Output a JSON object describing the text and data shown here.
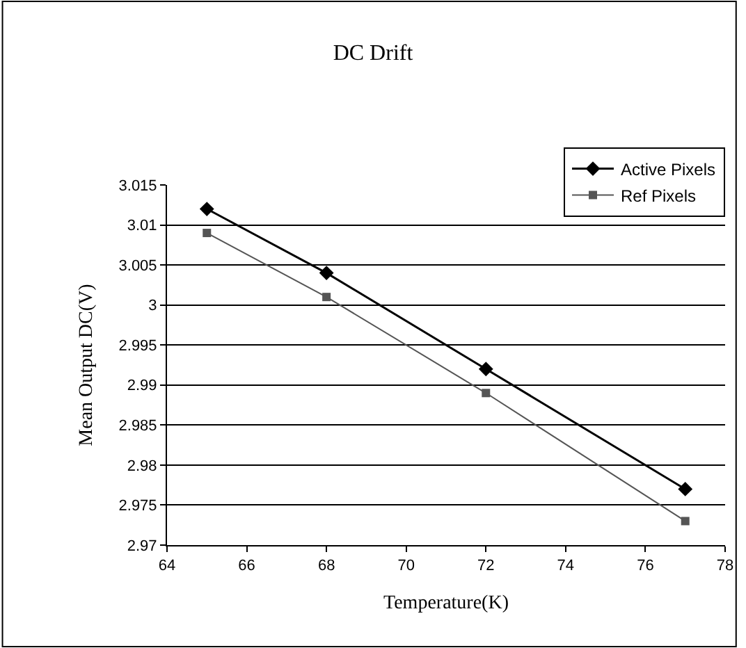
{
  "chart_data": {
    "type": "line",
    "title": "DC Drift",
    "xlabel": "Temperature(K)",
    "ylabel": "Mean Output DC(V)",
    "x": [
      65,
      68,
      72,
      77
    ],
    "series": [
      {
        "name": "Active Pixels",
        "color": "#000000",
        "values": [
          3.012,
          3.004,
          2.992,
          2.977
        ],
        "marker": "diamond"
      },
      {
        "name": "Ref Pixels",
        "color": "#555555",
        "values": [
          3.009,
          3.001,
          2.989,
          2.973
        ],
        "marker": "square"
      }
    ],
    "xlim": [
      64,
      78
    ],
    "xticks": [
      64,
      66,
      68,
      70,
      72,
      74,
      76,
      78
    ],
    "ylim": [
      2.97,
      3.015
    ],
    "yticks": [
      2.97,
      2.975,
      2.98,
      2.985,
      2.99,
      2.995,
      3,
      3.005,
      3.01,
      3.015
    ],
    "grid": "y",
    "legend": "top right",
    "line_style": "solid"
  }
}
